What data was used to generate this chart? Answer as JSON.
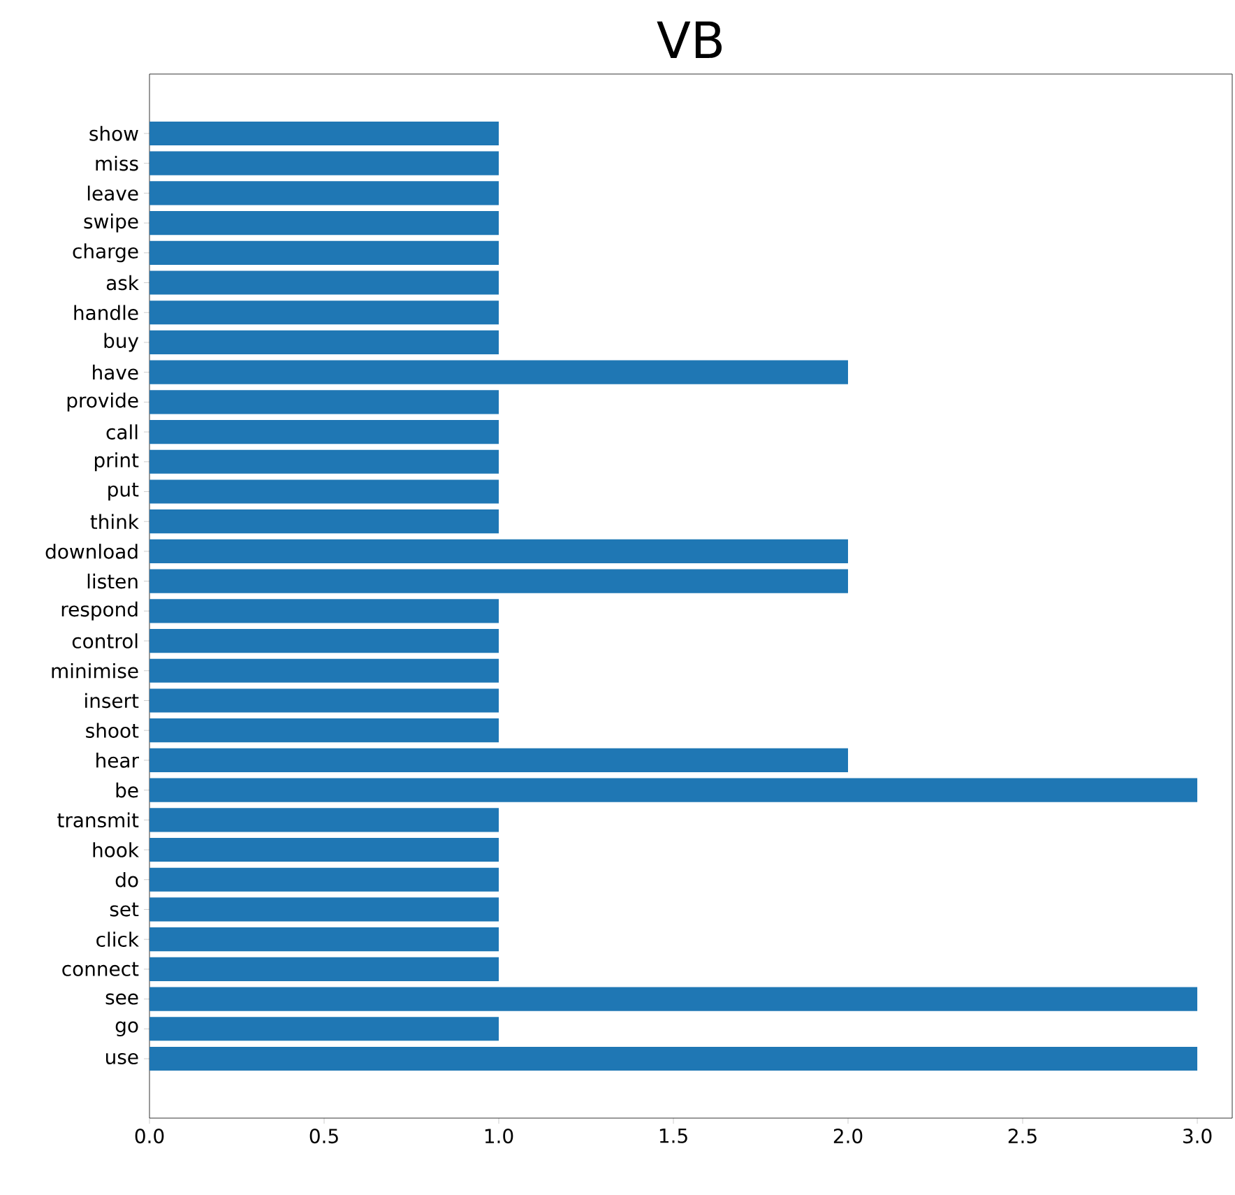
{
  "chart_data": {
    "type": "bar",
    "orientation": "horizontal",
    "title": "VB",
    "categories": [
      "show",
      "miss",
      "leave",
      "swipe",
      "charge",
      "ask",
      "handle",
      "buy",
      "have",
      "provide",
      "call",
      "print",
      "put",
      "think",
      "download",
      "listen",
      "respond",
      "control",
      "minimise",
      "insert",
      "shoot",
      "hear",
      "be",
      "transmit",
      "hook",
      "do",
      "set",
      "click",
      "connect",
      "see",
      "go",
      "use"
    ],
    "values": [
      1,
      1,
      1,
      1,
      1,
      1,
      1,
      1,
      2,
      1,
      1,
      1,
      1,
      1,
      2,
      2,
      1,
      1,
      1,
      1,
      1,
      2,
      3,
      1,
      1,
      1,
      1,
      1,
      1,
      3,
      1,
      3
    ],
    "color": "#1f77b4",
    "xlim": [
      0,
      3.1
    ],
    "xticks": [
      {
        "value": 0,
        "label": "0.0"
      },
      {
        "value": 0.5,
        "label": "0.5"
      },
      {
        "value": 1,
        "label": "1.0"
      },
      {
        "value": 1.5,
        "label": "1.5"
      },
      {
        "value": 2,
        "label": "2.0"
      },
      {
        "value": 2.5,
        "label": "2.5"
      },
      {
        "value": 3,
        "label": "3.0"
      }
    ],
    "grid": false
  }
}
